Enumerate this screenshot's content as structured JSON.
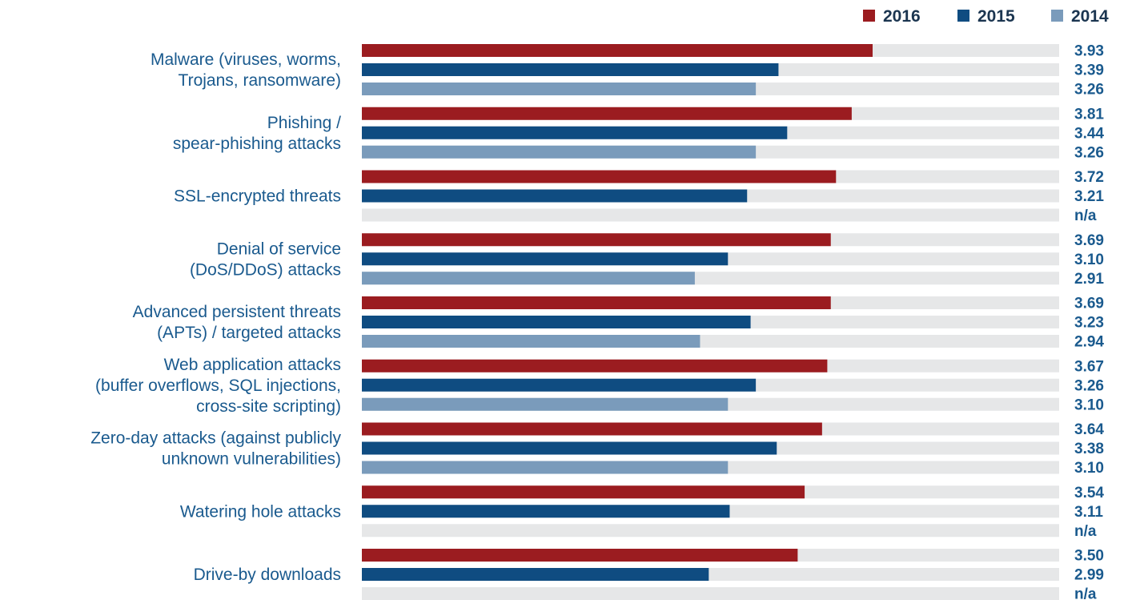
{
  "chart_data": {
    "type": "bar",
    "orientation": "horizontal",
    "categories": [
      [
        "Malware (viruses, worms,",
        "Trojans, ransomware)"
      ],
      [
        "Phishing /",
        "spear-phishing attacks"
      ],
      [
        "SSL-encrypted threats"
      ],
      [
        "Denial of service",
        "(DoS/DDoS) attacks"
      ],
      [
        "Advanced persistent threats",
        "(APTs) / targeted attacks"
      ],
      [
        "Web application attacks",
        "(buffer overflows, SQL injections,",
        "cross-site scripting)"
      ],
      [
        "Zero-day attacks (against publicly",
        "unknown vulnerabilities)"
      ],
      [
        "Watering hole attacks"
      ],
      [
        "Drive-by downloads"
      ]
    ],
    "series": [
      {
        "name": "2016",
        "color": "#9b1c20",
        "values": [
          3.93,
          3.81,
          3.72,
          3.69,
          3.69,
          3.67,
          3.64,
          3.54,
          3.5
        ],
        "labels": [
          "3.93",
          "3.81",
          "3.72",
          "3.69",
          "3.69",
          "3.67",
          "3.64",
          "3.54",
          "3.50"
        ]
      },
      {
        "name": "2015",
        "color": "#0f4c81",
        "values": [
          3.39,
          3.44,
          3.21,
          3.1,
          3.23,
          3.26,
          3.38,
          3.11,
          2.99
        ],
        "labels": [
          "3.39",
          "3.44",
          "3.21",
          "3.10",
          "3.23",
          "3.26",
          "3.38",
          "3.11",
          "2.99"
        ]
      },
      {
        "name": "2014",
        "color": "#7a9bbb",
        "values": [
          3.26,
          3.26,
          null,
          2.91,
          2.94,
          3.1,
          3.1,
          null,
          null
        ],
        "labels": [
          "3.26",
          "3.26",
          "n/a",
          "2.91",
          "2.94",
          "3.10",
          "3.10",
          "n/a",
          "n/a"
        ]
      }
    ],
    "xlim": [
      1,
      5
    ],
    "track_color": "#e6e7e8",
    "label_color": "#1a5a8e",
    "legend_position": "top-right",
    "grid": false
  }
}
